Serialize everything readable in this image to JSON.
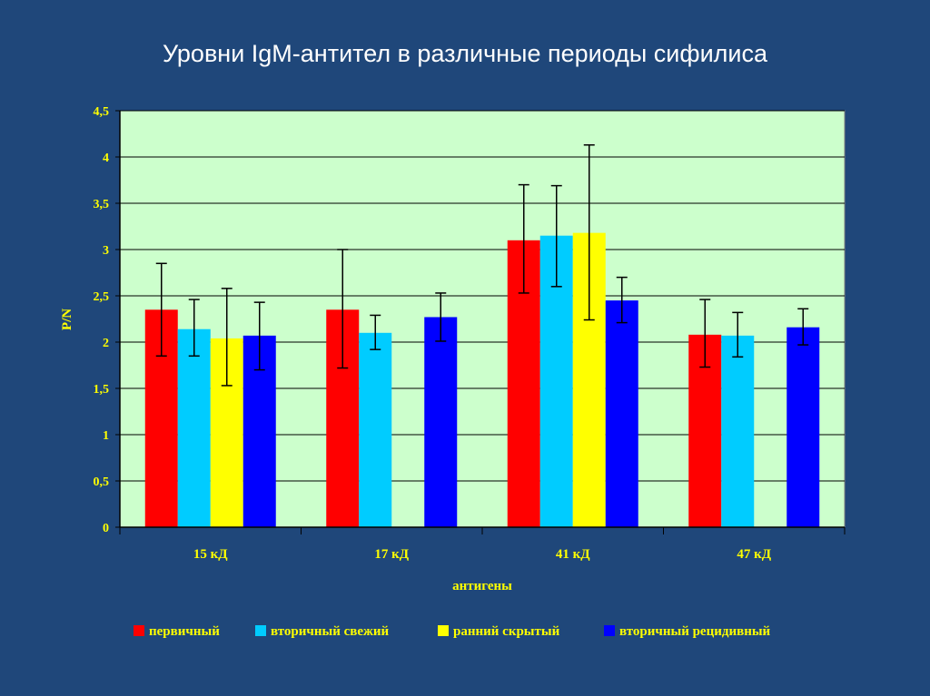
{
  "slide": {
    "title": "Уровни IgM-антител в различные периоды сифилиса",
    "background_color": "#1f477a"
  },
  "chart_data": {
    "type": "bar",
    "title": "Уровни IgM-антител в различные периоды сифилиса",
    "xlabel": "антигены",
    "ylabel": "P/N",
    "ylim": [
      0,
      4.5
    ],
    "yticks": [
      "0",
      "0,5",
      "1",
      "1,5",
      "2",
      "2,5",
      "3",
      "3,5",
      "4",
      "4,5"
    ],
    "grid": true,
    "plot_background": "#ccffcc",
    "legend_position": "bottom",
    "categories": [
      "15 кД",
      "17 кД",
      "41 кД",
      "47 кД"
    ],
    "series": [
      {
        "name": "первичный",
        "color": "#ff0000",
        "values": [
          2.35,
          2.35,
          3.1,
          2.08
        ],
        "err_low": [
          1.85,
          1.72,
          2.53,
          1.73
        ],
        "err_high": [
          2.85,
          3.0,
          3.7,
          2.46
        ]
      },
      {
        "name": "вторичный свежий",
        "color": "#00ccff",
        "values": [
          2.14,
          2.1,
          3.15,
          2.07
        ],
        "err_low": [
          1.85,
          1.92,
          2.6,
          1.84
        ],
        "err_high": [
          2.46,
          2.29,
          3.69,
          2.32
        ]
      },
      {
        "name": "ранний скрытый",
        "color": "#ffff00",
        "values": [
          2.04,
          0,
          3.18,
          0
        ],
        "err_low": [
          1.53,
          null,
          2.24,
          null
        ],
        "err_high": [
          2.58,
          null,
          4.13,
          null
        ]
      },
      {
        "name": "вторичный рецидивный",
        "color": "#0000ff",
        "values": [
          2.07,
          2.27,
          2.45,
          2.16
        ],
        "err_low": [
          1.7,
          2.01,
          2.21,
          1.97
        ],
        "err_high": [
          2.43,
          2.53,
          2.7,
          2.36
        ]
      }
    ]
  }
}
